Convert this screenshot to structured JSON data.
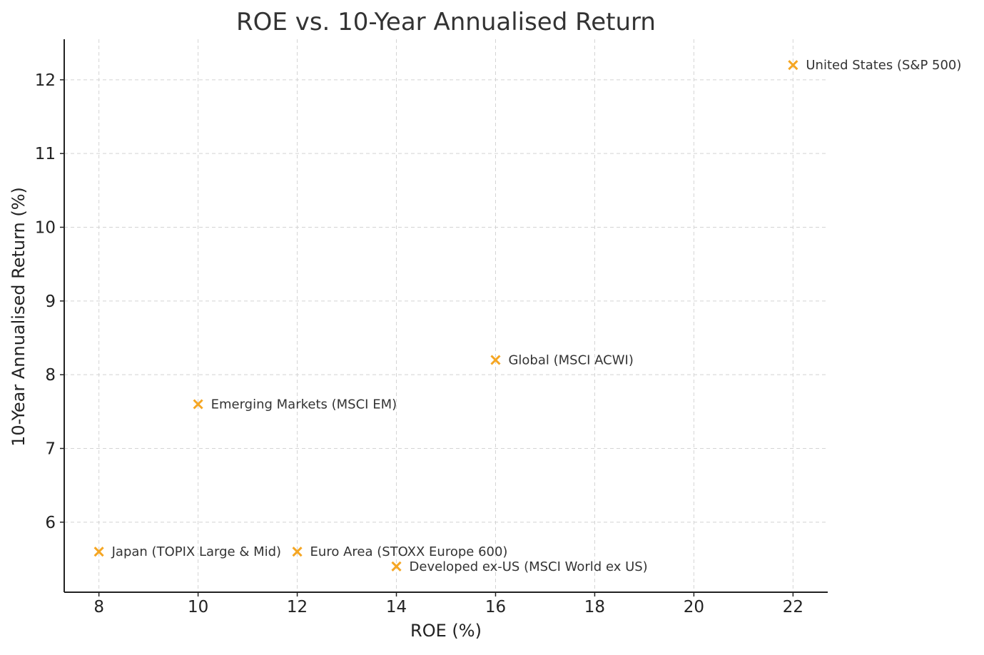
{
  "chart_data": {
    "type": "scatter",
    "title": "ROE vs. 10-Year Annualised Return",
    "xlabel": "ROE (%)",
    "ylabel": "10-Year Annualised Return (%)",
    "xlim": [
      7.3,
      22.7
    ],
    "ylim": [
      5.05,
      12.55
    ],
    "xticks": [
      8,
      10,
      12,
      14,
      16,
      18,
      20,
      22
    ],
    "yticks": [
      6,
      7,
      8,
      9,
      10,
      11,
      12
    ],
    "grid": true,
    "marker": "x",
    "color": "#f5a623",
    "points": [
      {
        "label": "United States (S&P 500)",
        "x": 22,
        "y": 12.2
      },
      {
        "label": "Global (MSCI ACWI)",
        "x": 16,
        "y": 8.2
      },
      {
        "label": "Emerging Markets (MSCI EM)",
        "x": 10,
        "y": 7.6
      },
      {
        "label": "Japan (TOPIX Large & Mid)",
        "x": 8,
        "y": 5.6
      },
      {
        "label": "Euro Area (STOXX Europe 600)",
        "x": 12,
        "y": 5.6
      },
      {
        "label": "Developed ex-US (MSCI World ex US)",
        "x": 14,
        "y": 5.4
      }
    ]
  }
}
